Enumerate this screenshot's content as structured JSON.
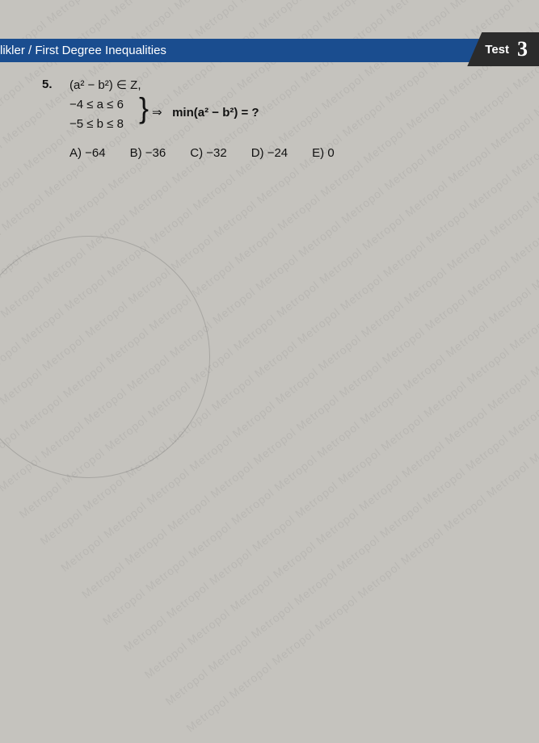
{
  "watermark_text": "Metropol Metropol Metropol Metropol Metropol Metropol Metropol Metropol Metropol Metropol Metropol Metropol Metropol Metropol",
  "header": {
    "title": "likler / First Degree Inequalities",
    "test_label": "Test",
    "test_number": "3"
  },
  "question": {
    "number": "5.",
    "line1_html": "(a² − b²) ∈ Z,",
    "cond1": "−4 ≤ a ≤ 6",
    "cond2": "−5 ≤ b ≤ 8",
    "implies": "⇒",
    "ask_html": "min(a² − b²) = ?",
    "choices": {
      "a": "A) −64",
      "b": "B) −36",
      "c": "C) −32",
      "d": "D) −24",
      "e": "E) 0"
    }
  }
}
